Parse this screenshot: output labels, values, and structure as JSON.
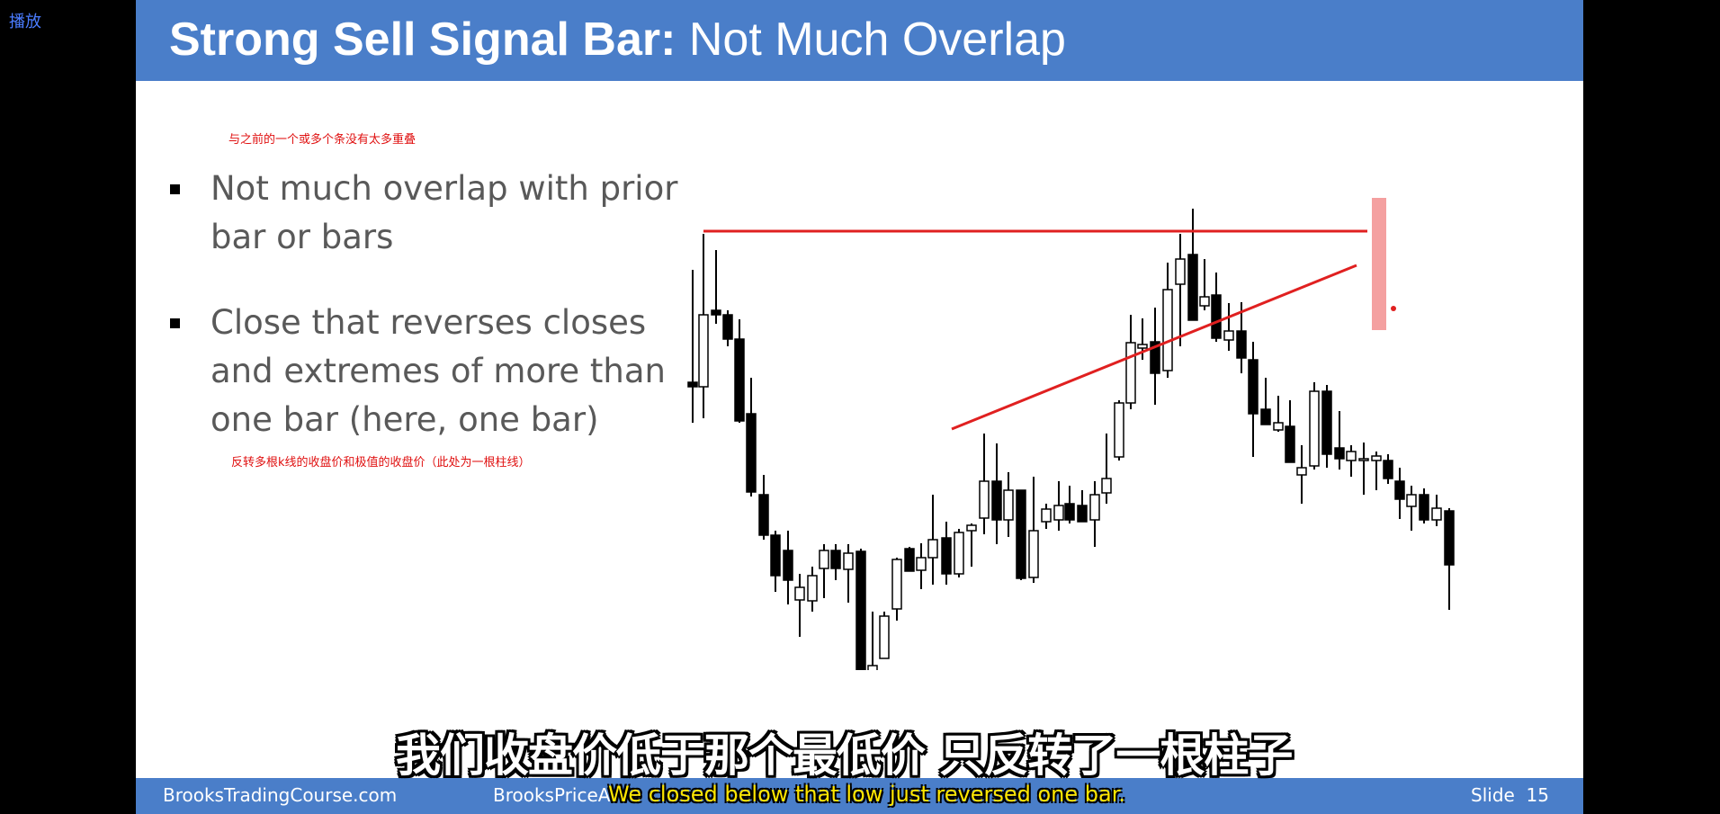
{
  "player": {
    "play_label": "播放"
  },
  "slide": {
    "title_bold": "Strong Sell Signal Bar:",
    "title_rest": "Not Much Overlap",
    "note_top": "与之前的一个或多个条没有太多重叠",
    "note_bottom": "反转多根k线的收盘价和极值的收盘价（此处为一根柱线）",
    "bullets": [
      {
        "text": "Not much overlap with prior bar or bars"
      },
      {
        "text": "Close that reverses closes and extremes of more than one bar (here, one bar)"
      }
    ],
    "footer": {
      "left": "BrooksTradingCourse.com",
      "middle": "BrooksPriceA",
      "slide_label": "Slide",
      "slide_number": "15"
    },
    "colors": {
      "header": "#4a7ec9",
      "line": "#e02020",
      "highlight": "#f08080"
    }
  },
  "subtitles": {
    "chinese": "我们收盘价低于那个最低价 只反转了一根柱子",
    "english": "We closed below that low  just reversed one bar."
  }
}
